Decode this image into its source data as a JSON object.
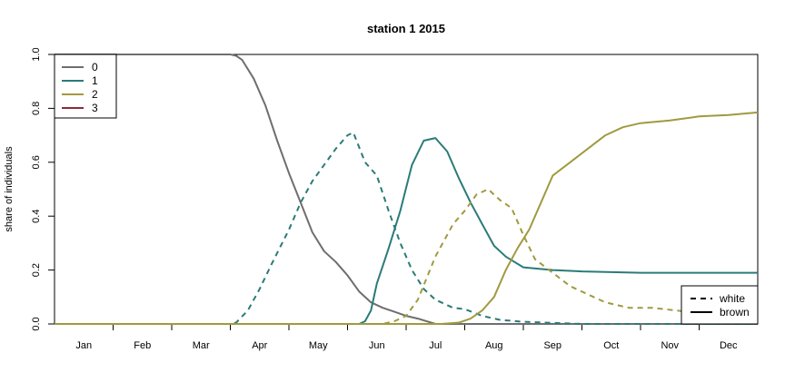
{
  "chart_data": {
    "type": "line",
    "title": "station 1 2015",
    "xlabel": "",
    "ylabel": "share of individuals",
    "x_tick_labels": [
      "Jan",
      "Feb",
      "Mar",
      "Apr",
      "May",
      "Jun",
      "Jul",
      "Aug",
      "Sep",
      "Oct",
      "Nov",
      "Dec"
    ],
    "x_unit": "month",
    "xlim": [
      0,
      12
    ],
    "ylim": [
      0,
      1
    ],
    "y_ticks": [
      "0.0",
      "0.2",
      "0.4",
      "0.6",
      "0.8",
      "1.0"
    ],
    "grid": false,
    "legend_class": {
      "placement": "top-left",
      "entries": [
        "0",
        "1",
        "2",
        "3"
      ]
    },
    "legend_color": {
      "placement": "bottom-right",
      "entries": [
        "white",
        "brown"
      ]
    },
    "colors": {
      "0": "#6e6e6e",
      "1": "#2a7b78",
      "2": "#a09a40",
      "3": "#8b2a3a"
    },
    "series": [
      {
        "name": "0",
        "color_key": "0",
        "style": "solid",
        "x": [
          0,
          3.0,
          3.1,
          3.2,
          3.4,
          3.6,
          3.8,
          4.0,
          4.2,
          4.4,
          4.6,
          4.8,
          5.0,
          5.2,
          5.4,
          5.6,
          5.8,
          6.0,
          6.2,
          6.5,
          12
        ],
        "y": [
          1.0,
          1.0,
          0.995,
          0.98,
          0.91,
          0.81,
          0.68,
          0.56,
          0.45,
          0.34,
          0.27,
          0.23,
          0.18,
          0.12,
          0.08,
          0.06,
          0.045,
          0.03,
          0.02,
          0.0,
          0.0
        ]
      },
      {
        "name": "1",
        "color_key": "1",
        "style": "dashed",
        "x": [
          0,
          3.0,
          3.1,
          3.3,
          3.5,
          3.7,
          4.0,
          4.2,
          4.4,
          4.6,
          4.8,
          5.0,
          5.1,
          5.3,
          5.5,
          5.7,
          5.9,
          6.1,
          6.3,
          6.5,
          6.8,
          7.0,
          7.3,
          7.6,
          8.0,
          9.0,
          12
        ],
        "y": [
          0.0,
          0.0,
          0.005,
          0.05,
          0.13,
          0.22,
          0.35,
          0.45,
          0.53,
          0.59,
          0.65,
          0.7,
          0.71,
          0.6,
          0.55,
          0.42,
          0.3,
          0.2,
          0.13,
          0.09,
          0.06,
          0.055,
          0.03,
          0.015,
          0.008,
          0.0,
          0.0
        ]
      },
      {
        "name": "1",
        "color_key": "1",
        "style": "solid",
        "x": [
          0,
          5.2,
          5.3,
          5.4,
          5.5,
          5.7,
          5.9,
          6.1,
          6.3,
          6.5,
          6.7,
          6.9,
          7.1,
          7.3,
          7.5,
          7.7,
          8.0,
          8.5,
          9.0,
          10.0,
          11.0,
          12.0
        ],
        "y": [
          0.0,
          0.0,
          0.01,
          0.05,
          0.15,
          0.28,
          0.42,
          0.59,
          0.68,
          0.69,
          0.64,
          0.54,
          0.45,
          0.37,
          0.29,
          0.25,
          0.21,
          0.2,
          0.195,
          0.19,
          0.19,
          0.19
        ]
      },
      {
        "name": "2",
        "color_key": "2",
        "style": "dashed",
        "x": [
          0,
          5.6,
          5.8,
          6.0,
          6.2,
          6.5,
          6.8,
          7.0,
          7.2,
          7.4,
          7.6,
          7.8,
          8.0,
          8.2,
          8.5,
          8.8,
          9.0,
          9.4,
          9.8,
          10.2,
          10.6,
          11.0,
          11.3
        ],
        "y": [
          0.0,
          0.0,
          0.01,
          0.03,
          0.09,
          0.25,
          0.37,
          0.42,
          0.48,
          0.5,
          0.46,
          0.43,
          0.33,
          0.24,
          0.19,
          0.14,
          0.12,
          0.08,
          0.06,
          0.06,
          0.05,
          0.04,
          0.03
        ]
      },
      {
        "name": "2",
        "color_key": "2",
        "style": "solid",
        "x": [
          0,
          6.3,
          6.6,
          6.9,
          7.1,
          7.3,
          7.5,
          7.7,
          7.9,
          8.1,
          8.3,
          8.5,
          8.8,
          9.1,
          9.4,
          9.7,
          10.0,
          10.5,
          11.0,
          11.5,
          12.0
        ],
        "y": [
          0.0,
          0.0,
          0.0,
          0.005,
          0.02,
          0.05,
          0.1,
          0.2,
          0.28,
          0.35,
          0.45,
          0.55,
          0.6,
          0.65,
          0.7,
          0.73,
          0.745,
          0.755,
          0.77,
          0.775,
          0.785
        ]
      }
    ]
  }
}
